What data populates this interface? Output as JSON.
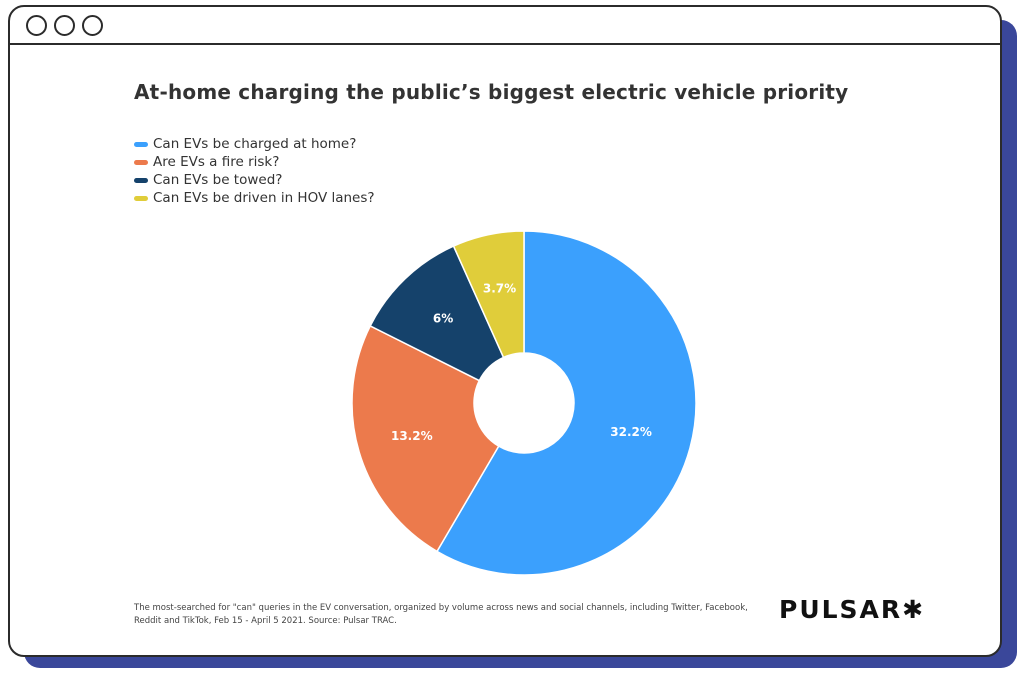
{
  "chart_data": {
    "type": "pie",
    "donut": true,
    "title": "At-home charging the public’s biggest electric vehicle priority",
    "categories": [
      "Can EVs be charged at home?",
      "Are EVs a fire risk?",
      "Can EVs be towed?",
      "Can EVs be driven in HOV lanes?"
    ],
    "values": [
      32.2,
      13.2,
      6,
      3.7
    ],
    "labels": [
      "32.2%",
      "13.2%",
      "6%",
      "3.7%"
    ],
    "colors": [
      "#3ba0fd",
      "#ec7a4c",
      "#15426b",
      "#e0cd3a"
    ],
    "legend": "top-left"
  },
  "footnote": "The most-searched for \"can\" queries in the EV conversation, organized by volume across news and social channels, including Twitter, Facebook, Reddit and TikTok, Feb 15 - April 5 2021. Source: Pulsar TRAC.",
  "logo": "PULSAR✱"
}
